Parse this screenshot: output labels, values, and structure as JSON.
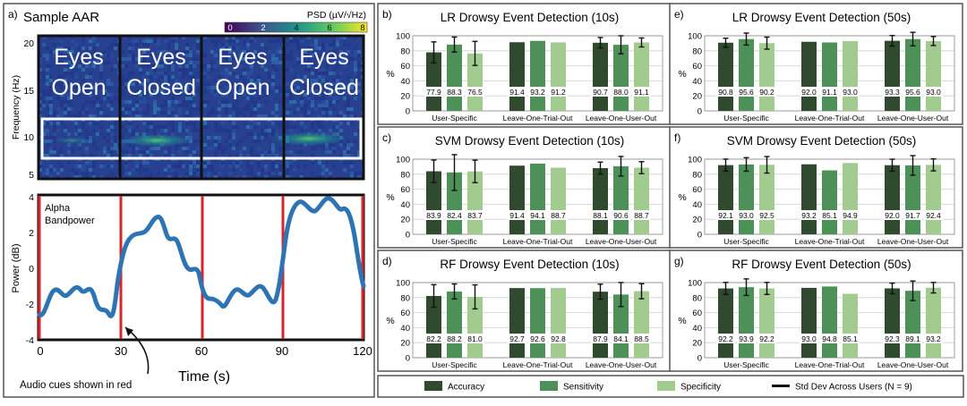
{
  "panel_a": {
    "tag": "a)",
    "title": "Sample AAR",
    "colorbar": {
      "label": "PSD (µV/√Hz)",
      "ticks": [
        "0",
        "2",
        "4",
        "6",
        "8"
      ]
    },
    "spectrogram": {
      "ylabel": "Frequency (Hz)",
      "yticks": [
        "20",
        "15",
        "10",
        "5"
      ],
      "segments": [
        [
          "Eyes",
          "Open"
        ],
        [
          "Eyes",
          "Closed"
        ],
        [
          "Eyes",
          "Open"
        ],
        [
          "Eyes",
          "Closed"
        ]
      ]
    },
    "bandpower": {
      "label_lines": [
        "Alpha",
        "Bandpower"
      ],
      "ylabel": "Power (dB)",
      "yticks": [
        "4",
        "2",
        "0",
        "-2",
        "-4"
      ],
      "xticks": [
        "0",
        "30",
        "60",
        "90",
        "120"
      ],
      "xlabel": "Time (s)",
      "annotation": "Audio cues shown in red",
      "colors": {
        "line": "#2e74b5",
        "cue": "#d7262b"
      }
    }
  },
  "legend": {
    "items": [
      {
        "label": "Accuracy",
        "color": "#2f4a2f"
      },
      {
        "label": "Sensitivity",
        "color": "#4e9158"
      },
      {
        "label": "Specificity",
        "color": "#a2cc8f"
      },
      {
        "label": "Std Dev Across Users (N = 9)",
        "color": "#111111"
      }
    ]
  },
  "chart_data": [
    {
      "id": "b",
      "tag": "b)",
      "type": "bar",
      "title": "LR Drowsy Event Detection (10s)",
      "ylabel": "%",
      "ylim": [
        0,
        100
      ],
      "yticks": [
        "0",
        "20",
        "40",
        "60",
        "80",
        "100"
      ],
      "categories": [
        "User-Specific",
        "Leave-One-Trial-Out",
        "Leave-One-User-Out"
      ],
      "series": [
        {
          "name": "Accuracy",
          "values": [
            77.9,
            91.4,
            90.7
          ],
          "errors": [
            14,
            0,
            7
          ]
        },
        {
          "name": "Sensitivity",
          "values": [
            88.3,
            93.2,
            88.0
          ],
          "errors": [
            10,
            0,
            12
          ]
        },
        {
          "name": "Specificity",
          "values": [
            76.5,
            91.2,
            91.1
          ],
          "errors": [
            16,
            0,
            6
          ]
        }
      ],
      "value_labels": [
        [
          "77.9",
          "88.3",
          "76.5"
        ],
        [
          "91.4",
          "93.2",
          "91.2"
        ],
        [
          "90.7",
          "88.0",
          "91.1"
        ]
      ]
    },
    {
      "id": "c",
      "tag": "c)",
      "type": "bar",
      "title": "SVM Drowsy Event Detection (10s)",
      "ylabel": "%",
      "ylim": [
        0,
        100
      ],
      "yticks": [
        "0",
        "20",
        "40",
        "60",
        "80",
        "100"
      ],
      "categories": [
        "User-Specific",
        "Leave-One-Trial-Out",
        "Leave-One-User-Out"
      ],
      "series": [
        {
          "name": "Accuracy",
          "values": [
            83.9,
            91.4,
            88.1
          ],
          "errors": [
            15,
            0,
            8
          ]
        },
        {
          "name": "Sensitivity",
          "values": [
            82.4,
            94.1,
            90.6
          ],
          "errors": [
            24,
            0,
            13
          ]
        },
        {
          "name": "Specificity",
          "values": [
            83.7,
            88.7,
            88.7
          ],
          "errors": [
            15,
            0,
            8
          ]
        }
      ],
      "value_labels": [
        [
          "83.9",
          "82.4",
          "83.7"
        ],
        [
          "91.4",
          "94.1",
          "88.7"
        ],
        [
          "88.1",
          "90.6",
          "88.7"
        ]
      ]
    },
    {
      "id": "d",
      "tag": "d)",
      "type": "bar",
      "title": "RF Drowsy Event Detection (10s)",
      "ylabel": "%",
      "ylim": [
        0,
        100
      ],
      "yticks": [
        "0",
        "20",
        "40",
        "60",
        "80",
        "100"
      ],
      "categories": [
        "User-Specific",
        "Leave-One-Trial-Out",
        "Leave-One-User-Out"
      ],
      "series": [
        {
          "name": "Accuracy",
          "values": [
            82.2,
            92.7,
            87.9
          ],
          "errors": [
            15,
            0,
            10
          ]
        },
        {
          "name": "Sensitivity",
          "values": [
            88.2,
            92.6,
            84.1
          ],
          "errors": [
            10,
            0,
            16
          ]
        },
        {
          "name": "Specificity",
          "values": [
            81.0,
            92.8,
            88.5
          ],
          "errors": [
            16,
            0,
            10
          ]
        }
      ],
      "value_labels": [
        [
          "82.2",
          "88.2",
          "81.0"
        ],
        [
          "92.7",
          "92.6",
          "92.8"
        ],
        [
          "87.9",
          "84.1",
          "88.5"
        ]
      ]
    },
    {
      "id": "e",
      "tag": "e)",
      "type": "bar",
      "title": "LR Drowsy Event Detection (50s)",
      "ylabel": "%",
      "ylim": [
        0,
        100
      ],
      "yticks": [
        "0",
        "20",
        "40",
        "60",
        "80",
        "100"
      ],
      "categories": [
        "User-Specific",
        "Leave-One-Trial-Out",
        "Leave-One-User-Out"
      ],
      "series": [
        {
          "name": "Accuracy",
          "values": [
            90.8,
            92.0,
            93.3
          ],
          "errors": [
            6,
            0,
            7
          ]
        },
        {
          "name": "Sensitivity",
          "values": [
            95.6,
            91.1,
            95.6
          ],
          "errors": [
            8,
            0,
            9
          ]
        },
        {
          "name": "Specificity",
          "values": [
            90.2,
            93.0,
            93.0
          ],
          "errors": [
            8,
            0,
            6
          ]
        }
      ],
      "value_labels": [
        [
          "90.8",
          "95.6",
          "90.2"
        ],
        [
          "92.0",
          "91.1",
          "93.0"
        ],
        [
          "93.3",
          "95.6",
          "93.0"
        ]
      ]
    },
    {
      "id": "f",
      "tag": "f)",
      "type": "bar",
      "title": "SVM Drowsy Event Detection (50s)",
      "ylabel": "%",
      "ylim": [
        0,
        100
      ],
      "yticks": [
        "0",
        "20",
        "40",
        "60",
        "80",
        "100"
      ],
      "categories": [
        "User-Specific",
        "Leave-One-Trial-Out",
        "Leave-One-User-Out"
      ],
      "series": [
        {
          "name": "Accuracy",
          "values": [
            92.1,
            93.2,
            92.0
          ],
          "errors": [
            8,
            0,
            8
          ]
        },
        {
          "name": "Sensitivity",
          "values": [
            93.0,
            85.1,
            91.7
          ],
          "errors": [
            9,
            0,
            13
          ]
        },
        {
          "name": "Specificity",
          "values": [
            92.5,
            94.9,
            92.4
          ],
          "errors": [
            11,
            0,
            8
          ]
        }
      ],
      "value_labels": [
        [
          "92.1",
          "93.0",
          "92.5"
        ],
        [
          "93.2",
          "85.1",
          "94.9"
        ],
        [
          "92.0",
          "91.7",
          "92.4"
        ]
      ]
    },
    {
      "id": "g",
      "tag": "g)",
      "type": "bar",
      "title": "RF Drowsy Event Detection (50s)",
      "ylabel": "%",
      "ylim": [
        0,
        100
      ],
      "yticks": [
        "0",
        "20",
        "40",
        "60",
        "80",
        "100"
      ],
      "categories": [
        "User-Specific",
        "Leave-One-Trial-Out",
        "Leave-One-User-Out"
      ],
      "series": [
        {
          "name": "Accuracy",
          "values": [
            92.2,
            93.0,
            92.3
          ],
          "errors": [
            8,
            0,
            7
          ]
        },
        {
          "name": "Sensitivity",
          "values": [
            93.9,
            94.8,
            89.1
          ],
          "errors": [
            11,
            0,
            13
          ]
        },
        {
          "name": "Specificity",
          "values": [
            92.2,
            85.1,
            93.2
          ],
          "errors": [
            8,
            0,
            7
          ]
        }
      ],
      "value_labels": [
        [
          "92.2",
          "93.9",
          "92.2"
        ],
        [
          "93.0",
          "94.8",
          "85.1"
        ],
        [
          "92.3",
          "89.1",
          "93.2"
        ]
      ]
    }
  ]
}
